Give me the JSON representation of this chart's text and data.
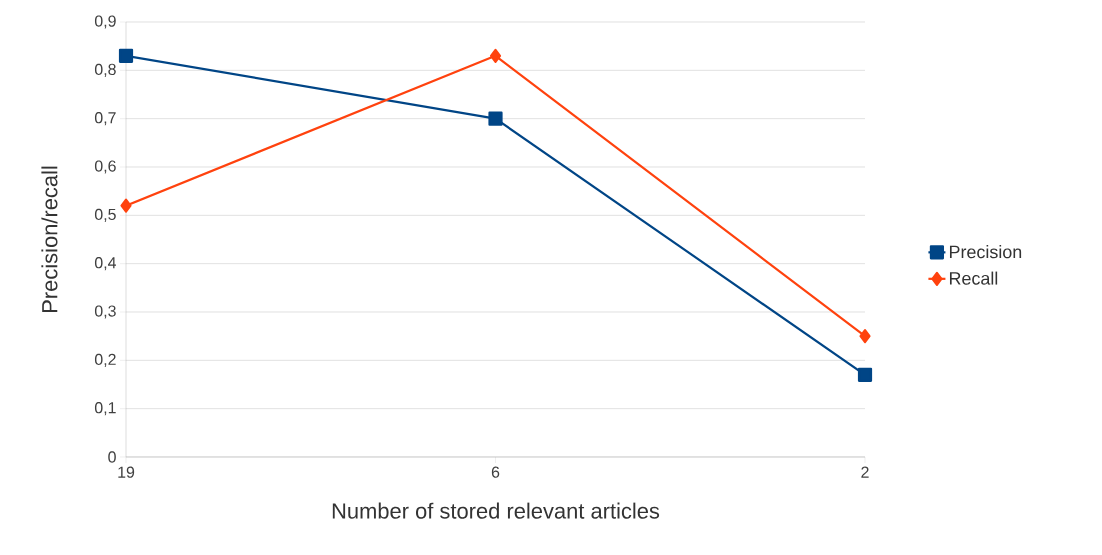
{
  "chart_data": {
    "type": "line",
    "xlabel": "Number of stored relevant articles",
    "ylabel": "Precision/recall",
    "categories": [
      "19",
      "6",
      "2"
    ],
    "series": [
      {
        "name": "Precision",
        "color": "#004586",
        "values": [
          0.83,
          0.7,
          0.17
        ],
        "marker": "square"
      },
      {
        "name": "Recall",
        "color": "#ff420e",
        "values": [
          0.52,
          0.83,
          0.25
        ],
        "marker": "diamond"
      }
    ],
    "ylim": [
      0,
      0.9
    ],
    "yticks": [
      {
        "value": 0,
        "label": "0"
      },
      {
        "value": 0.1,
        "label": "0,1"
      },
      {
        "value": 0.2,
        "label": "0,2"
      },
      {
        "value": 0.3,
        "label": "0,3"
      },
      {
        "value": 0.4,
        "label": "0,4"
      },
      {
        "value": 0.5,
        "label": "0,5"
      },
      {
        "value": 0.6,
        "label": "0,6"
      },
      {
        "value": 0.7,
        "label": "0,7"
      },
      {
        "value": 0.8,
        "label": "0,8"
      },
      {
        "value": 0.9,
        "label": "0,9"
      }
    ],
    "grid": "y",
    "legend": "right",
    "line_style": "solid"
  }
}
